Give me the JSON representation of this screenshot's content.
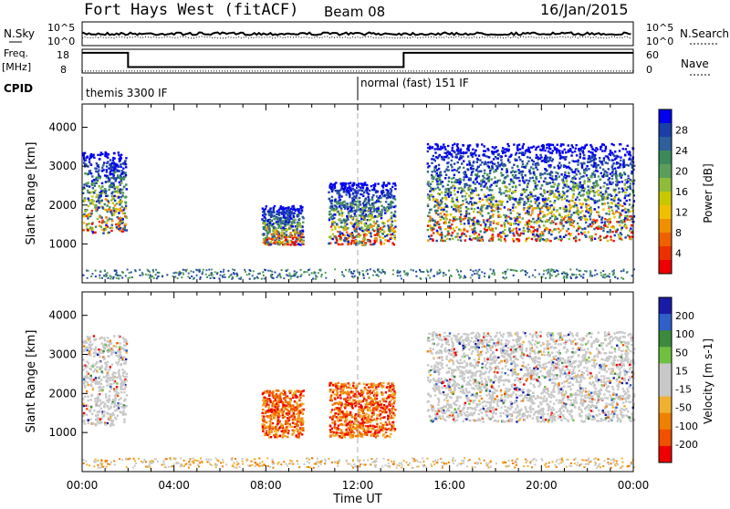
{
  "header": {
    "radar": "Fort Hays West (fitACF)",
    "beam": "Beam 08",
    "date": "16/Jan/2015"
  },
  "noise_panel": {
    "left_label": "N.Sky",
    "left_ticks": [
      "10^5",
      "10^0"
    ],
    "right_ticks": [
      "10^5",
      "10^0"
    ],
    "right_label": "N.Search"
  },
  "freq_panel": {
    "left_label_top": "Freq.",
    "left_label_bottom": "[MHz]",
    "left_ticks": [
      "18",
      "8"
    ],
    "right_ticks": [
      "60",
      "0"
    ],
    "right_label": "Nave",
    "freq_steps": [
      {
        "from_hour": 0,
        "to_hour": 2,
        "mhz": 16.5
      },
      {
        "from_hour": 2,
        "to_hour": 14,
        "mhz": 10.5
      },
      {
        "from_hour": 14,
        "to_hour": 24,
        "mhz": 16.5
      }
    ],
    "nave_level": 5
  },
  "cpid": {
    "label": "CPID",
    "modes": [
      {
        "text": "themis 3300 IF",
        "start_hour": 0
      },
      {
        "text": "normal (fast) 151 IF",
        "start_hour": 12
      }
    ]
  },
  "chart_data": [
    {
      "type": "heatmap",
      "quantity": "power",
      "ylabel": "Slant Range [km]",
      "yticks": [
        1000,
        2000,
        3000,
        4000
      ],
      "ylim": [
        0,
        4600
      ],
      "xlim": [
        0,
        24
      ],
      "colorbar_label": "Power [dB]",
      "colorbar_ticks": [
        "28",
        "24",
        "20",
        "16",
        "12",
        "8",
        "4"
      ],
      "colors": [
        "#0000ee",
        "#1a3fa8",
        "#2f5f9c",
        "#3c8a5a",
        "#5a9e5a",
        "#8fbc3a",
        "#c8c800",
        "#f0c000",
        "#f09000",
        "#f06000",
        "#ee3000",
        "#ee0000"
      ],
      "echo_regions": [
        {
          "hours": [
            0.0,
            1.9
          ],
          "range_km": [
            1300,
            3400
          ]
        },
        {
          "hours": [
            7.8,
            9.6
          ],
          "range_km": [
            1000,
            2000
          ]
        },
        {
          "hours": [
            10.7,
            13.6
          ],
          "range_km": [
            1000,
            2600
          ]
        },
        {
          "hours": [
            15.0,
            24.0
          ],
          "range_km": [
            1100,
            3600
          ]
        }
      ]
    },
    {
      "type": "heatmap",
      "quantity": "velocity",
      "ylabel": "Slant Range [km]",
      "yticks": [
        1000,
        2000,
        3000,
        4000
      ],
      "ylim": [
        0,
        4600
      ],
      "xlim": [
        0,
        24
      ],
      "colorbar_label": "Velocity [m s-1]",
      "colorbar_ticks": [
        "200",
        "100",
        "50",
        "15",
        "-15",
        "-50",
        "-100",
        "-200"
      ],
      "colors": [
        "#1a1aa8",
        "#2f5fc8",
        "#3c8a3c",
        "#70c040",
        "#c8c8c8",
        "#c8c8c8",
        "#f0b030",
        "#f08000",
        "#f05000",
        "#ee0000"
      ],
      "echo_regions": [
        {
          "hours": [
            0.0,
            1.9
          ],
          "range_km": [
            1200,
            3500
          ]
        },
        {
          "hours": [
            7.8,
            9.6
          ],
          "range_km": [
            900,
            2100
          ]
        },
        {
          "hours": [
            10.7,
            13.6
          ],
          "range_km": [
            900,
            2300
          ]
        },
        {
          "hours": [
            15.0,
            24.0
          ],
          "range_km": [
            1300,
            3600
          ]
        }
      ]
    }
  ],
  "time_axis": {
    "ticks": [
      "00:00",
      "04:00",
      "08:00",
      "12:00",
      "16:00",
      "20:00",
      "00:00"
    ],
    "xlabel": "Time UT"
  }
}
